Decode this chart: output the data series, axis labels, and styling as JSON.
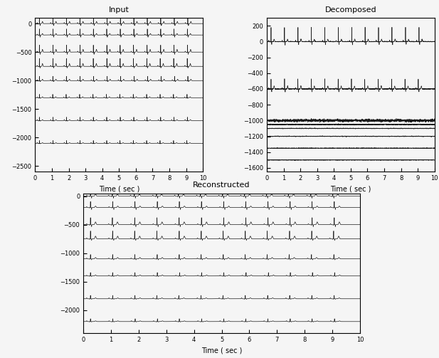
{
  "title_input": "Input",
  "title_decomposed": "Decomposed",
  "title_reconstructed": "Reconstructed",
  "xlabel": "Time ( sec )",
  "fs": 250,
  "duration": 10,
  "n_channels_input": 8,
  "n_channels_decomposed": 8,
  "n_channels_reconstructed": 8,
  "input_offsets": [
    0,
    -200,
    -500,
    -750,
    -1000,
    -1300,
    -1700,
    -2100
  ],
  "recon_offsets": [
    0,
    -200,
    -500,
    -750,
    -1100,
    -1400,
    -1800,
    -2200
  ],
  "decomp_offsets": [
    0,
    -600,
    -1000,
    -1050,
    -1100,
    -1200,
    -1350,
    -1500
  ],
  "input_ylim": [
    100,
    -2600
  ],
  "decomp_ylim": [
    300,
    -1650
  ],
  "recon_ylim": [
    50,
    -2400
  ],
  "input_yticks": [
    0,
    -500,
    -1000,
    -1500,
    -2000,
    -2500
  ],
  "decomp_yticks": [
    200,
    0,
    -200,
    -400,
    -600,
    -800,
    -1000,
    -1200,
    -1400,
    -1600
  ],
  "recon_yticks": [
    0,
    -500,
    -1000,
    -1500,
    -2000
  ],
  "xticks": [
    0,
    1,
    2,
    3,
    4,
    5,
    6,
    7,
    8,
    9,
    10
  ],
  "line_color": "#1a1a1a",
  "line_width": 0.5,
  "bg_color": "#f5f5f5",
  "heart_rate": 75,
  "title_fontsize": 8,
  "label_fontsize": 7,
  "tick_fontsize": 6
}
